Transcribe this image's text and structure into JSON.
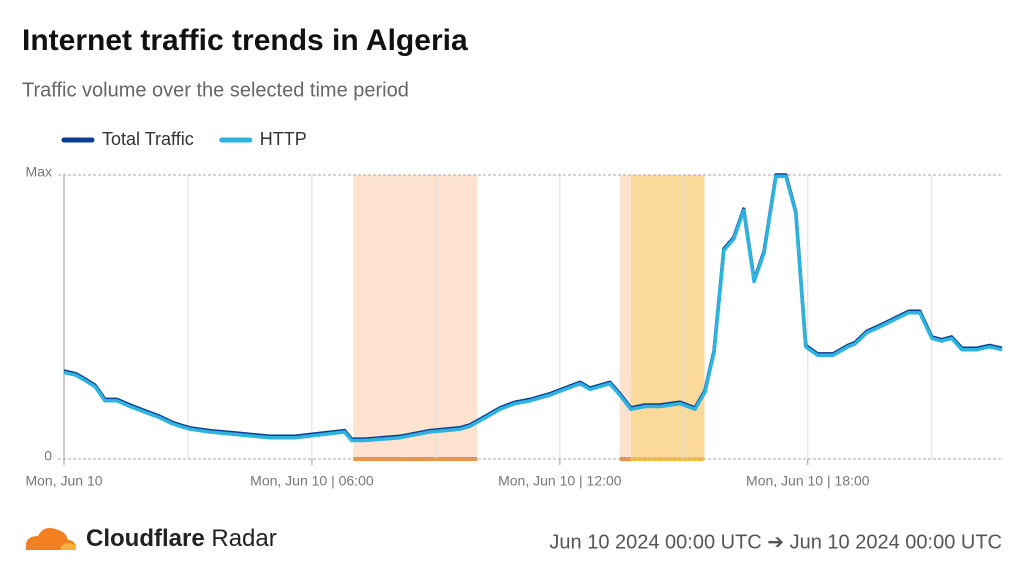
{
  "chart_data": {
    "type": "line",
    "title": "Internet traffic trends in Algeria",
    "subtitle": "Traffic volume over the selected time period",
    "xlim": [
      0,
      22.7
    ],
    "xticks": [
      {
        "value": 0,
        "label": "Mon, Jun 10"
      },
      {
        "value": 6,
        "label": "Mon, Jun 10 | 06:00"
      },
      {
        "value": 12,
        "label": "Mon, Jun 10 | 12:00"
      },
      {
        "value": 18,
        "label": "Mon, Jun 10 | 18:00"
      }
    ],
    "minor_xticks": [
      3,
      9,
      15,
      21
    ],
    "ylim": [
      0,
      1
    ],
    "yticks": [
      0,
      {
        "value": 1,
        "label": "Max"
      }
    ],
    "grid": true,
    "legend": "top-left",
    "shaded_ranges": [
      {
        "start": 7,
        "end": 10,
        "color": "#fde3cf",
        "bar_color": "#f0923f"
      },
      {
        "start": 13.45,
        "end": 13.72,
        "color": "#fde3cf",
        "bar_color": "#f0923f"
      },
      {
        "start": 13.72,
        "end": 15.5,
        "color": "#fad99b",
        "bar_color": "#fbc43c"
      }
    ],
    "x": [
      0,
      0.29,
      0.53,
      0.75,
      0.99,
      1.28,
      1.6,
      1.96,
      2.32,
      2.61,
      2.81,
      3.05,
      3.53,
      4.26,
      4.98,
      5.59,
      6.19,
      6.79,
      6.96,
      7.28,
      8.13,
      8.85,
      9.58,
      9.82,
      10.19,
      10.55,
      10.91,
      11.28,
      11.76,
      12.12,
      12.49,
      12.73,
      13.21,
      13.45,
      13.72,
      14.06,
      14.42,
      14.91,
      15.27,
      15.51,
      15.73,
      15.97,
      16.21,
      16.45,
      16.7,
      16.94,
      17.23,
      17.47,
      17.71,
      17.95,
      18.24,
      18.61,
      18.97,
      19.14,
      19.43,
      19.74,
      20.16,
      20.44,
      20.71,
      21.0,
      21.24,
      21.48,
      21.73,
      22.09,
      22.4,
      22.7
    ],
    "series": [
      {
        "name": "Total Traffic",
        "color": "#0a3d91",
        "values": [
          0.31,
          0.3,
          0.28,
          0.26,
          0.21,
          0.21,
          0.19,
          0.17,
          0.15,
          0.13,
          0.12,
          0.11,
          0.1,
          0.09,
          0.08,
          0.08,
          0.09,
          0.1,
          0.07,
          0.07,
          0.08,
          0.1,
          0.11,
          0.12,
          0.15,
          0.18,
          0.2,
          0.21,
          0.23,
          0.25,
          0.27,
          0.25,
          0.27,
          0.23,
          0.18,
          0.19,
          0.19,
          0.2,
          0.18,
          0.24,
          0.38,
          0.74,
          0.78,
          0.88,
          0.63,
          0.73,
          1.0,
          1.0,
          0.87,
          0.4,
          0.37,
          0.37,
          0.4,
          0.41,
          0.45,
          0.47,
          0.5,
          0.52,
          0.52,
          0.43,
          0.42,
          0.43,
          0.39,
          0.39,
          0.4,
          0.39
        ]
      },
      {
        "name": "HTTP",
        "color": "#2eb3df",
        "values": [
          0.305,
          0.295,
          0.275,
          0.255,
          0.205,
          0.205,
          0.185,
          0.165,
          0.145,
          0.125,
          0.115,
          0.105,
          0.095,
          0.085,
          0.075,
          0.075,
          0.085,
          0.095,
          0.065,
          0.065,
          0.075,
          0.095,
          0.105,
          0.115,
          0.145,
          0.175,
          0.195,
          0.205,
          0.225,
          0.245,
          0.265,
          0.245,
          0.265,
          0.225,
          0.175,
          0.185,
          0.185,
          0.195,
          0.175,
          0.235,
          0.375,
          0.735,
          0.775,
          0.875,
          0.625,
          0.725,
          0.995,
          0.995,
          0.865,
          0.395,
          0.365,
          0.365,
          0.395,
          0.405,
          0.445,
          0.465,
          0.495,
          0.515,
          0.515,
          0.425,
          0.415,
          0.425,
          0.385,
          0.385,
          0.395,
          0.385
        ]
      }
    ]
  },
  "footer": {
    "brand": "Cloudflare",
    "product": "Radar",
    "date_range": "Jun 10 2024 00:00 UTC ➔ Jun 10 2024 00:00 UTC"
  }
}
